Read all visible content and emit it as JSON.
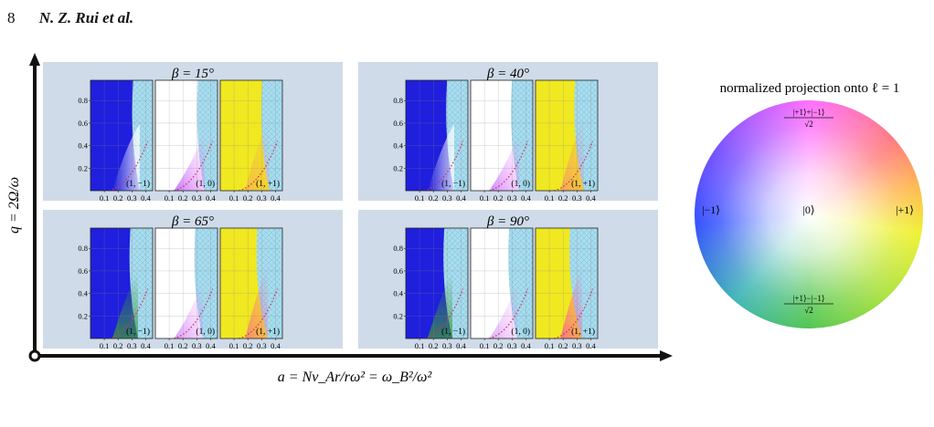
{
  "header": {
    "page_number": "8",
    "authors": "N. Z. Rui et al."
  },
  "axes": {
    "y_label": "q = 2Ω/ω",
    "x_label": "a = Nv_Ar/rω² = ω_B²/ω²"
  },
  "panels": [
    {
      "title": "β = 15°",
      "beta_deg": 15
    },
    {
      "title": "β = 40°",
      "beta_deg": 40
    },
    {
      "title": "β = 65°",
      "beta_deg": 65
    },
    {
      "title": "β = 90°",
      "beta_deg": 90
    }
  ],
  "subplot_labels": [
    "(1, −1)",
    "(1, 0)",
    "(1, +1)"
  ],
  "subplot_base_colors": [
    "#1f1fdd",
    "#ffffff",
    "#f0e820"
  ],
  "y_ticks": [
    "0.2",
    "0.4",
    "0.6",
    "0.8"
  ],
  "x_ticks": [
    "0.1",
    "0.2",
    "0.3",
    "0.4"
  ],
  "colorwheel": {
    "title": "normalized projection onto ℓ = 1",
    "top_num": "|+1⟩+|−1⟩",
    "top_den": "√2",
    "bottom_num": "|+1⟩−|−1⟩",
    "bottom_den": "√2",
    "left": "|−1⟩",
    "center": "|0⟩",
    "right": "|+1⟩"
  },
  "colors": {
    "panel_bg": "#cfdbe8",
    "hatch": "#a8dcee",
    "dotted_curve": "#d0306a",
    "axis": "#111111"
  }
}
